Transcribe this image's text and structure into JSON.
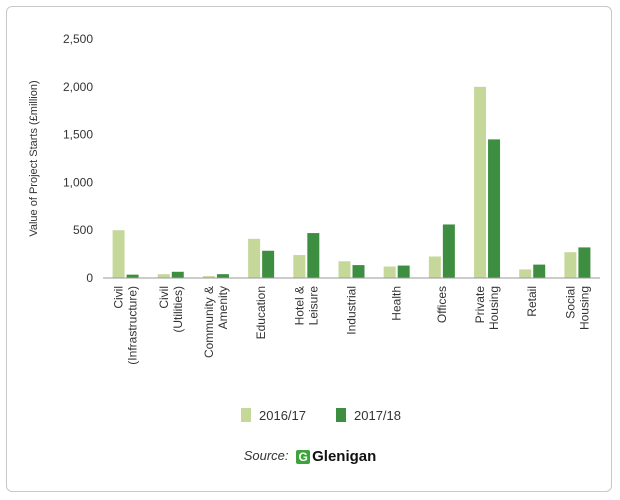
{
  "chart_data": {
    "type": "bar",
    "title": "",
    "xlabel": "",
    "ylabel": "Value of Project Starts (£million)",
    "ylim": [
      0,
      2500
    ],
    "yticks": [
      0,
      500,
      1000,
      1500,
      2000,
      2500
    ],
    "ytick_labels": [
      "0",
      "500",
      "1,000",
      "1,500",
      "2,000",
      "2,500"
    ],
    "grid": false,
    "legend_position": "bottom",
    "categories": [
      [
        "Civil",
        "(Infrastructure)"
      ],
      [
        "Civil",
        "(Utilities)"
      ],
      [
        "Community &",
        "Amenity"
      ],
      [
        "Education"
      ],
      [
        "Hotel &",
        "Leisure"
      ],
      [
        "Industrial"
      ],
      [
        "Health"
      ],
      [
        "Offices"
      ],
      [
        "Private",
        "Housing"
      ],
      [
        "Retail"
      ],
      [
        "Social",
        "Housing"
      ]
    ],
    "series": [
      {
        "name": "2016/17",
        "color": "#c5d89a",
        "values": [
          500,
          40,
          20,
          410,
          240,
          175,
          120,
          225,
          2000,
          90,
          270
        ]
      },
      {
        "name": "2017/18",
        "color": "#3e8e41",
        "values": [
          35,
          65,
          40,
          285,
          470,
          135,
          130,
          560,
          1450,
          140,
          320
        ]
      }
    ]
  },
  "source": {
    "label": "Source:",
    "logo_mark": "G",
    "logo_text": "Glenigan"
  }
}
